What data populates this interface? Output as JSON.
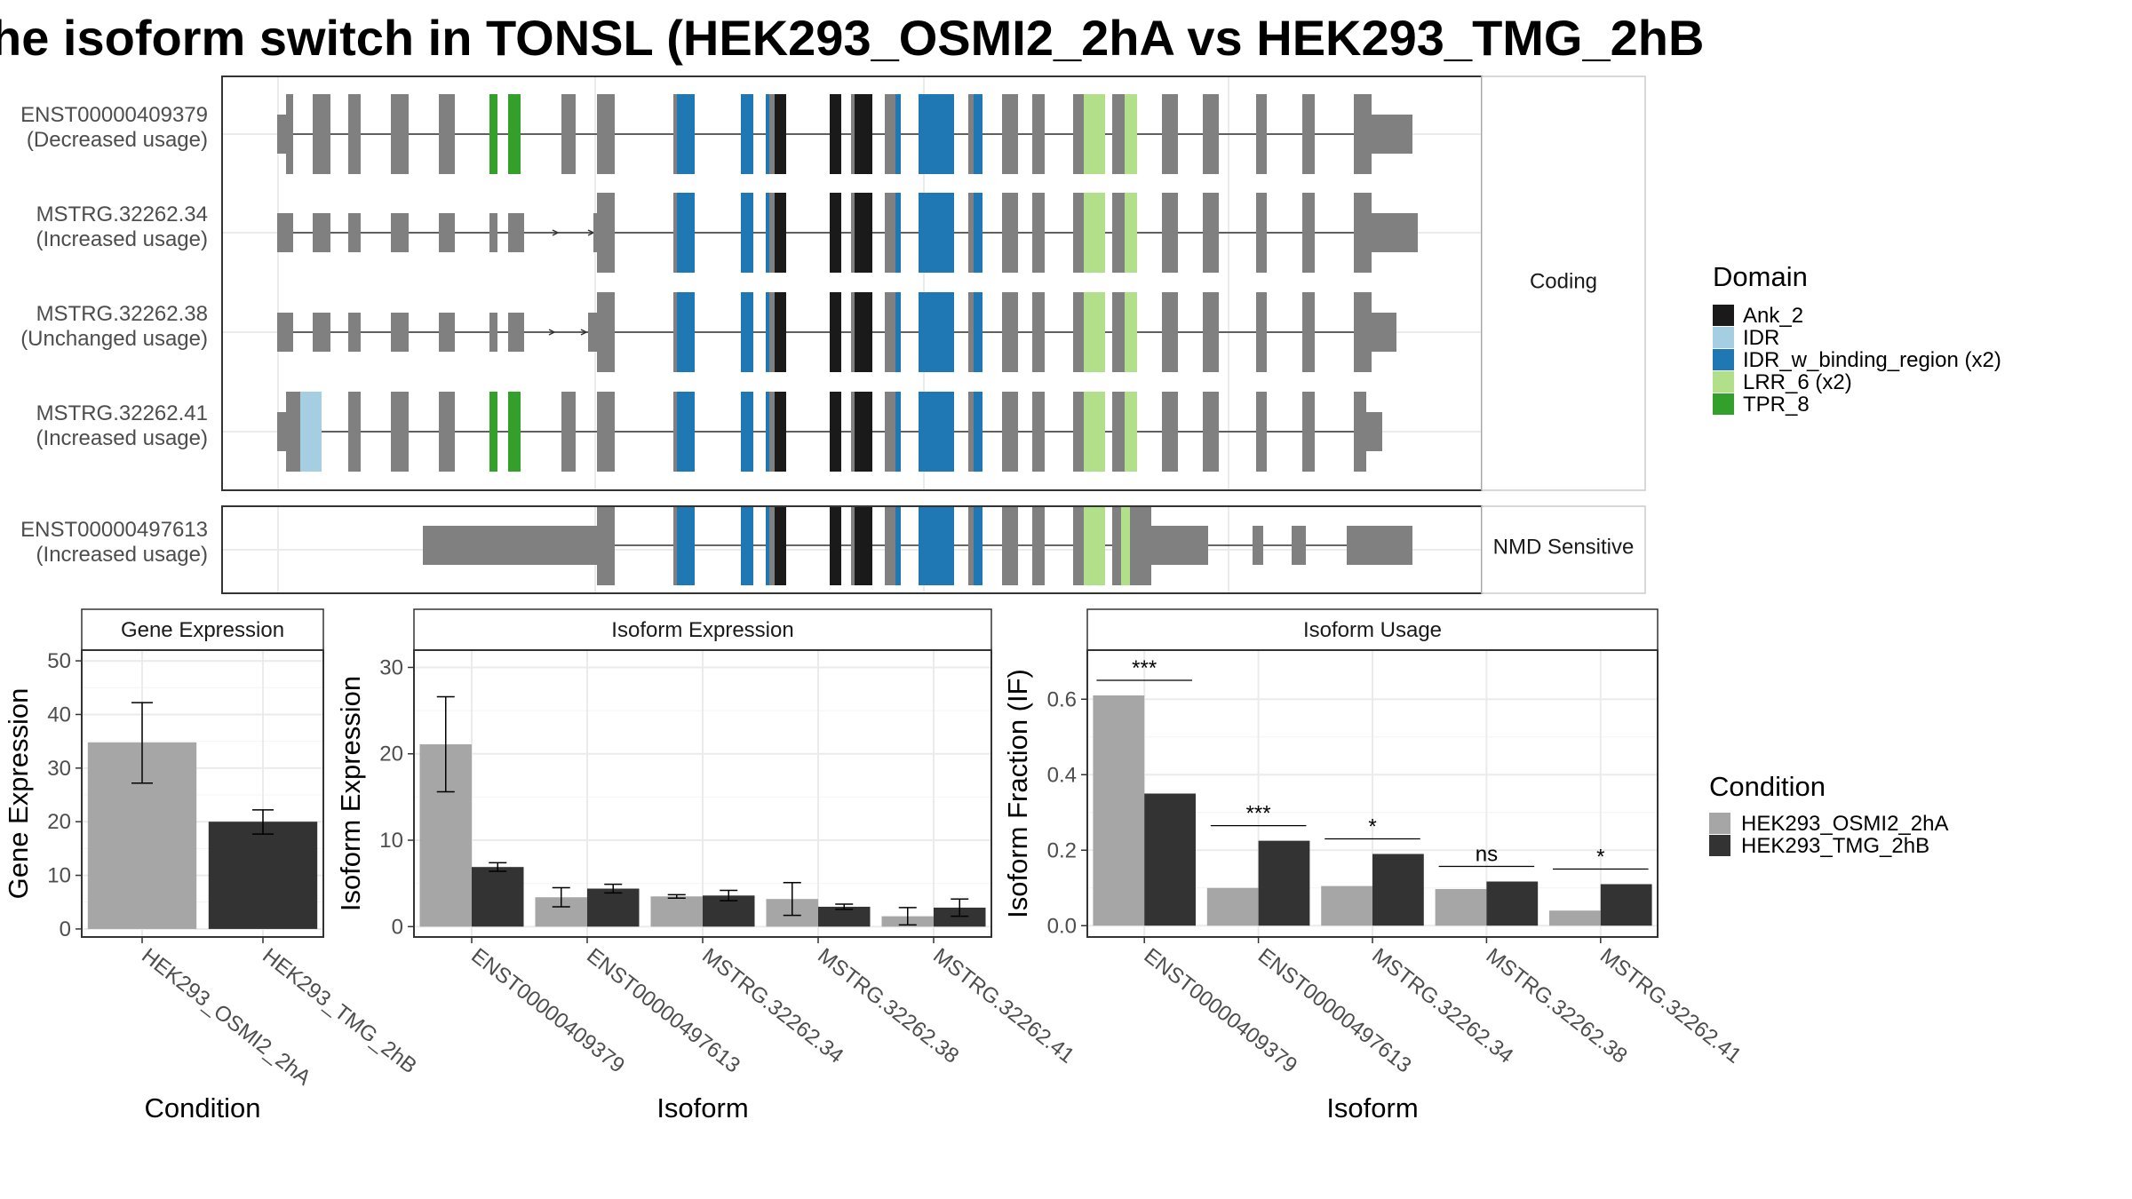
{
  "title": "he isoform switch in TONSL (HEK293_OSMI2_2hA vs HEK293_TMG_2hB",
  "colors": {
    "exon": "#808080",
    "Ank_2": "#1a1a1a",
    "IDR": "#a6cee3",
    "IDR_w_binding_region": "#1f78b4",
    "LRR_6": "#b2df8a",
    "TPR_8": "#33a02c",
    "cond1": "#a6a6a6",
    "cond2": "#333333"
  },
  "structure": {
    "coding_label": "Coding",
    "nmd_label": "NMD Sensitive",
    "transcripts": [
      {
        "id": "ENST00000409379",
        "usage": "(Decreased usage)",
        "group": "coding"
      },
      {
        "id": "MSTRG.32262.34",
        "usage": "(Increased usage)",
        "group": "coding"
      },
      {
        "id": "MSTRG.32262.38",
        "usage": "(Unchanged usage)",
        "group": "coding"
      },
      {
        "id": "MSTRG.32262.41",
        "usage": "(Increased usage)",
        "group": "coding"
      },
      {
        "id": "ENST00000497613",
        "usage": "(Increased usage)",
        "group": "nmd"
      }
    ]
  },
  "domain_legend": {
    "title": "Domain",
    "items": [
      {
        "label": "Ank_2",
        "color_key": "Ank_2"
      },
      {
        "label": "IDR",
        "color_key": "IDR"
      },
      {
        "label": "IDR_w_binding_region (x2)",
        "color_key": "IDR_w_binding_region"
      },
      {
        "label": "LRR_6 (x2)",
        "color_key": "LRR_6"
      },
      {
        "label": "TPR_8",
        "color_key": "TPR_8"
      }
    ]
  },
  "condition_legend": {
    "title": "Condition",
    "items": [
      "HEK293_OSMI2_2hA",
      "HEK293_TMG_2hB"
    ]
  },
  "chart_data": [
    {
      "type": "bar",
      "title": "Gene Expression",
      "xlabel": "Condition",
      "ylabel": "Gene Expression",
      "ylim": [
        -1.5,
        52
      ],
      "yticks": [
        0,
        10,
        20,
        30,
        40,
        50
      ],
      "categories": [
        "HEK293_OSMI2_2hA",
        "HEK293_TMG_2hB"
      ],
      "values": [
        34.8,
        20.0
      ],
      "error_low": [
        27.2,
        17.7
      ],
      "error_high": [
        42.2,
        22.2
      ]
    },
    {
      "type": "bar",
      "title": "Isoform Expression",
      "xlabel": "Isoform",
      "ylabel": "Isoform Expression",
      "ylim": [
        -1.2,
        32
      ],
      "yticks": [
        0,
        10,
        20,
        30
      ],
      "categories": [
        "ENST00000409379",
        "ENST00000497613",
        "MSTRG.32262.34",
        "MSTRG.32262.38",
        "MSTRG.32262.41"
      ],
      "series": [
        {
          "name": "HEK293_OSMI2_2hA",
          "values": [
            21.1,
            3.4,
            3.5,
            3.2,
            1.2
          ],
          "error_low": [
            15.6,
            2.3,
            3.3,
            1.3,
            0.2
          ],
          "error_high": [
            26.6,
            4.5,
            3.7,
            5.1,
            2.2
          ]
        },
        {
          "name": "HEK293_TMG_2hB",
          "values": [
            6.9,
            4.4,
            3.6,
            2.3,
            2.2
          ],
          "error_low": [
            6.4,
            3.9,
            3.0,
            2.0,
            1.2
          ],
          "error_high": [
            7.4,
            4.9,
            4.2,
            2.6,
            3.2
          ]
        }
      ]
    },
    {
      "type": "bar",
      "title": "Isoform Usage",
      "xlabel": "Isoform",
      "ylabel": "Isoform Fraction (IF)",
      "ylim": [
        -0.03,
        0.73
      ],
      "yticks": [
        0.0,
        0.2,
        0.4,
        0.6
      ],
      "ytick_labels": [
        "0.0",
        "0.2",
        "0.4",
        "0.6"
      ],
      "categories": [
        "ENST00000409379",
        "ENST00000497613",
        "MSTRG.32262.34",
        "MSTRG.32262.38",
        "MSTRG.32262.41"
      ],
      "series": [
        {
          "name": "HEK293_OSMI2_2hA",
          "values": [
            0.61,
            0.1,
            0.105,
            0.097,
            0.04
          ]
        },
        {
          "name": "HEK293_TMG_2hB",
          "values": [
            0.35,
            0.225,
            0.19,
            0.117,
            0.11
          ]
        }
      ],
      "significance": [
        "***",
        "***",
        "*",
        "ns",
        "*"
      ]
    }
  ]
}
